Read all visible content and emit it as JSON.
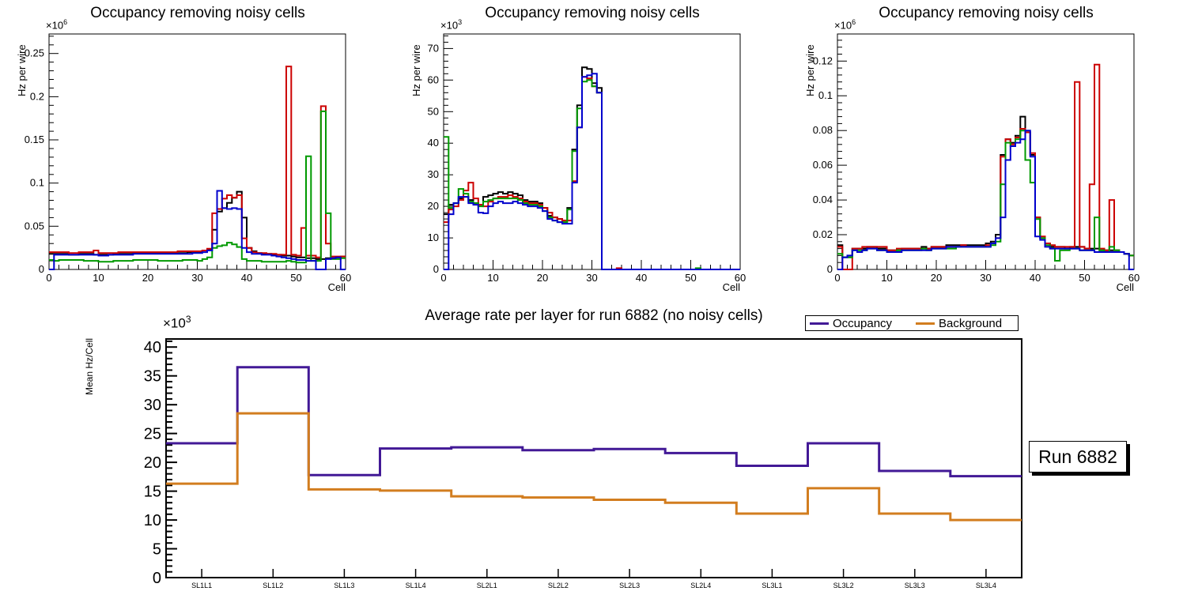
{
  "chart_data": [
    {
      "id": "occupancy-noisy-cells-1",
      "type": "step-histogram",
      "title": "Occupancy removing noisy cells",
      "xlabel": "Cell",
      "ylabel": "Hz per wire",
      "exponent": {
        "base": "×10",
        "power": "6"
      },
      "xlim": [
        0,
        60
      ],
      "ylim": [
        0,
        0.2726
      ],
      "xticks": [
        0,
        10,
        20,
        30,
        40,
        50,
        60
      ],
      "xtick_labels": [
        "0",
        "10",
        "20",
        "30",
        "40",
        "50",
        "60"
      ],
      "x_minor_step": 2,
      "yticks": [
        0,
        0.05,
        0.1,
        0.15,
        0.2,
        0.25
      ],
      "ytick_labels": [
        "0",
        "0.05",
        "0.1",
        "0.15",
        "0.2",
        "0.25"
      ],
      "y_major_step": 0.05,
      "y_minor_step": 0.01,
      "grid": false,
      "series": [
        {
          "name": "black",
          "color": "#000000",
          "values": [
            0.018,
            0.018,
            0.018,
            0.018,
            0.017,
            0.017,
            0.018,
            0.018,
            0.018,
            0.017,
            0.017,
            0.017,
            0.017,
            0.018,
            0.018,
            0.018,
            0.018,
            0.019,
            0.019,
            0.019,
            0.019,
            0.019,
            0.019,
            0.019,
            0.019,
            0.019,
            0.019,
            0.019,
            0.02,
            0.02,
            0.02,
            0.022,
            0.023,
            0.046,
            0.067,
            0.071,
            0.077,
            0.083,
            0.09,
            0.06,
            0.025,
            0.021,
            0.019,
            0.018,
            0.018,
            0.017,
            0.017,
            0.016,
            0.016,
            0.015,
            0.014,
            0.014,
            0.013,
            0.013,
            0.012,
            0.012,
            0.013,
            0.013,
            0.014,
            0.015
          ]
        },
        {
          "name": "red",
          "color": "#cc0000",
          "values": [
            0.02,
            0.02,
            0.02,
            0.02,
            0.019,
            0.019,
            0.02,
            0.02,
            0.02,
            0.022,
            0.019,
            0.019,
            0.019,
            0.019,
            0.02,
            0.02,
            0.02,
            0.02,
            0.02,
            0.02,
            0.02,
            0.02,
            0.02,
            0.02,
            0.02,
            0.02,
            0.021,
            0.021,
            0.021,
            0.021,
            0.021,
            0.022,
            0.024,
            0.065,
            0.07,
            0.082,
            0.086,
            0.083,
            0.086,
            0.036,
            0.025,
            0.02,
            0.019,
            0.019,
            0.018,
            0.018,
            0.017,
            0.017,
            0.235,
            0.017,
            0.016,
            0.048,
            0.016,
            0.016,
            0.014,
            0.189,
            0.03,
            0.015,
            0.015,
            0.015
          ]
        },
        {
          "name": "green",
          "color": "#009900",
          "values": [
            0.011,
            0.01,
            0.011,
            0.011,
            0.011,
            0.011,
            0.011,
            0.01,
            0.01,
            0.01,
            0.009,
            0.009,
            0.009,
            0.01,
            0.01,
            0.01,
            0.01,
            0.011,
            0.011,
            0.011,
            0.011,
            0.011,
            0.01,
            0.01,
            0.01,
            0.01,
            0.01,
            0.011,
            0.011,
            0.011,
            0.01,
            0.012,
            0.014,
            0.025,
            0.027,
            0.028,
            0.031,
            0.029,
            0.026,
            0.012,
            0.01,
            0.01,
            0.01,
            0.009,
            0.009,
            0.009,
            0.009,
            0.009,
            0.01,
            0.009,
            0.008,
            0.008,
            0.131,
            0.01,
            0.01,
            0.183,
            0.065,
            0.012,
            0.012,
            0.013
          ]
        },
        {
          "name": "blue",
          "color": "#0000cc",
          "values": [
            0,
            0.017,
            0.017,
            0.017,
            0.017,
            0.017,
            0.017,
            0.017,
            0.017,
            0.017,
            0.016,
            0.016,
            0.017,
            0.017,
            0.017,
            0.017,
            0.017,
            0.018,
            0.018,
            0.018,
            0.018,
            0.018,
            0.018,
            0.018,
            0.018,
            0.018,
            0.018,
            0.018,
            0.018,
            0.019,
            0.019,
            0.02,
            0.022,
            0.03,
            0.091,
            0.071,
            0.07,
            0.071,
            0.07,
            0.025,
            0.02,
            0.018,
            0.018,
            0.017,
            0.017,
            0.016,
            0.015,
            0.014,
            0.013,
            0.012,
            0.011,
            0.011,
            0.01,
            0.01,
            0,
            0,
            0.012,
            0.013,
            0.014,
            0
          ]
        }
      ]
    },
    {
      "id": "occupancy-noisy-cells-2",
      "type": "step-histogram",
      "title": "Occupancy removing noisy cells",
      "xlabel": "Cell",
      "ylabel": "Hz per wire",
      "exponent": {
        "base": "×10",
        "power": "3"
      },
      "xlim": [
        0,
        60
      ],
      "ylim": [
        0,
        74.6
      ],
      "xticks": [
        0,
        10,
        20,
        30,
        40,
        50,
        60
      ],
      "xtick_labels": [
        "0",
        "10",
        "20",
        "30",
        "40",
        "50",
        "60"
      ],
      "x_minor_step": 2,
      "yticks": [
        0,
        10,
        20,
        30,
        40,
        50,
        60,
        70
      ],
      "ytick_labels": [
        "0",
        "10",
        "20",
        "30",
        "40",
        "50",
        "60",
        "70"
      ],
      "y_major_step": 10,
      "y_minor_step": 2,
      "grid": false,
      "series": [
        {
          "name": "black",
          "color": "#000000",
          "values": [
            17.5,
            20.5,
            21,
            22.5,
            23,
            22,
            21,
            20.5,
            23,
            23.5,
            24,
            24.5,
            24,
            24.5,
            24,
            23.5,
            22,
            21.5,
            21.5,
            21,
            19.5,
            17,
            16.5,
            16,
            15.5,
            19.5,
            38,
            52,
            64,
            63.5,
            59,
            57.5,
            0,
            0,
            0,
            0,
            0,
            0,
            0,
            0,
            0,
            0,
            0,
            0,
            0,
            0,
            0,
            0,
            0,
            0,
            0,
            0,
            0,
            0,
            0,
            0,
            0,
            0,
            0,
            0
          ]
        },
        {
          "name": "red",
          "color": "#cc0000",
          "values": [
            15,
            19,
            20,
            22,
            25,
            27.5,
            22.5,
            20.5,
            20,
            21.5,
            22.5,
            23,
            23,
            23.5,
            23,
            22.5,
            21.5,
            21,
            21,
            20.5,
            19.5,
            18,
            16.5,
            16,
            15.5,
            15.5,
            28,
            45,
            61,
            60.5,
            58,
            56,
            0,
            0,
            0,
            0.4,
            0,
            0,
            0,
            0,
            0,
            0,
            0,
            0,
            0,
            0,
            0,
            0,
            0,
            0,
            0,
            0,
            0,
            0,
            0,
            0,
            0,
            0,
            0,
            0
          ]
        },
        {
          "name": "green",
          "color": "#009900",
          "values": [
            42,
            19.5,
            21,
            25.5,
            24,
            21.5,
            21,
            20,
            21.5,
            22,
            22.5,
            22.5,
            22.5,
            22.5,
            22.5,
            22,
            21,
            20.5,
            20.5,
            20,
            18.5,
            16.5,
            15.5,
            15,
            15,
            19,
            37.5,
            51,
            59.5,
            60,
            58,
            56,
            0,
            0,
            0,
            0,
            0,
            0,
            0,
            0,
            0,
            0,
            0,
            0,
            0,
            0,
            0,
            0,
            0,
            0,
            0,
            0.4,
            0,
            0,
            0,
            0,
            0,
            0,
            0,
            0
          ]
        },
        {
          "name": "blue",
          "color": "#0000cc",
          "values": [
            0,
            17.5,
            21,
            23,
            23,
            21,
            20.5,
            18,
            17.8,
            20,
            21,
            21.5,
            21,
            21,
            21.5,
            21,
            20.5,
            20,
            20,
            19.5,
            18.5,
            16,
            15.5,
            15,
            14.5,
            14.5,
            27.5,
            45,
            61,
            61.5,
            62,
            56,
            0,
            0,
            0,
            0,
            0,
            0,
            0,
            0,
            0,
            0,
            0,
            0,
            0,
            0,
            0,
            0,
            0,
            0,
            0,
            0,
            0,
            0,
            0,
            0,
            0,
            0,
            0,
            0
          ]
        }
      ]
    },
    {
      "id": "occupancy-noisy-cells-3",
      "type": "step-histogram",
      "title": "Occupancy removing noisy cells",
      "xlabel": "Cell",
      "ylabel": "Hz per wire",
      "exponent": {
        "base": "×10",
        "power": "6"
      },
      "xlim": [
        0,
        60
      ],
      "ylim": [
        0,
        0.1356
      ],
      "xticks": [
        0,
        10,
        20,
        30,
        40,
        50,
        60
      ],
      "xtick_labels": [
        "0",
        "10",
        "20",
        "30",
        "40",
        "50",
        "60"
      ],
      "x_minor_step": 2,
      "yticks": [
        0,
        0.02,
        0.04,
        0.06,
        0.08,
        0.1,
        0.12
      ],
      "ytick_labels": [
        "0",
        "0.02",
        "0.04",
        "0.06",
        "0.08",
        "0.1",
        "0.12"
      ],
      "y_major_step": 0.02,
      "y_minor_step": 0.004,
      "grid": false,
      "series": [
        {
          "name": "black",
          "color": "#000000",
          "values": [
            0.014,
            0.007,
            0.007,
            0.012,
            0.012,
            0.012,
            0.013,
            0.013,
            0.012,
            0.012,
            0.011,
            0.011,
            0.011,
            0.012,
            0.012,
            0.012,
            0.012,
            0.013,
            0.012,
            0.013,
            0.013,
            0.013,
            0.014,
            0.014,
            0.014,
            0.014,
            0.014,
            0.014,
            0.014,
            0.014,
            0.015,
            0.016,
            0.02,
            0.066,
            0.075,
            0.073,
            0.077,
            0.088,
            0.079,
            0.066,
            0.03,
            0.018,
            0.015,
            0.013,
            0.013,
            0.013,
            0.012,
            0.013,
            0.013,
            0.013,
            0.012,
            0.012,
            0.012,
            0.011,
            0.011,
            0.011,
            0.011,
            0.01,
            0.009,
            0.008
          ]
        },
        {
          "name": "red",
          "color": "#cc0000",
          "values": [
            0.013,
            0,
            0,
            0.012,
            0.012,
            0.013,
            0.013,
            0.013,
            0.013,
            0.013,
            0.011,
            0.011,
            0.012,
            0.012,
            0.012,
            0.012,
            0.012,
            0.012,
            0.012,
            0.013,
            0.013,
            0.013,
            0.013,
            0.013,
            0.013,
            0.014,
            0.013,
            0.013,
            0.013,
            0.013,
            0.014,
            0.015,
            0.018,
            0.065,
            0.075,
            0.072,
            0.076,
            0.081,
            0.079,
            0.067,
            0.03,
            0.019,
            0.015,
            0.014,
            0.013,
            0.013,
            0.013,
            0.013,
            0.108,
            0.013,
            0.012,
            0.049,
            0.118,
            0.012,
            0.011,
            0.04,
            0.011,
            0.01,
            0.009,
            0.008
          ]
        },
        {
          "name": "green",
          "color": "#009900",
          "values": [
            0.009,
            0.007,
            0.007,
            0.011,
            0.011,
            0.011,
            0.012,
            0.012,
            0.011,
            0.011,
            0.01,
            0.01,
            0.011,
            0.011,
            0.011,
            0.011,
            0.011,
            0.012,
            0.011,
            0.012,
            0.012,
            0.012,
            0.012,
            0.012,
            0.013,
            0.013,
            0.013,
            0.013,
            0.013,
            0.013,
            0.013,
            0.014,
            0.016,
            0.049,
            0.073,
            0.071,
            0.075,
            0.08,
            0.063,
            0.05,
            0.029,
            0.018,
            0.014,
            0.012,
            0.005,
            0.011,
            0.011,
            0.012,
            0.012,
            0.011,
            0.011,
            0.011,
            0.03,
            0.011,
            0.01,
            0.013,
            0.011,
            0.01,
            0.009,
            0.008
          ]
        },
        {
          "name": "blue",
          "color": "#0000cc",
          "values": [
            0,
            0.007,
            0.008,
            0.011,
            0.01,
            0.011,
            0.012,
            0.012,
            0.011,
            0.011,
            0.01,
            0.01,
            0.01,
            0.011,
            0.011,
            0.011,
            0.011,
            0.011,
            0.011,
            0.012,
            0.012,
            0.012,
            0.013,
            0.013,
            0.013,
            0.013,
            0.013,
            0.013,
            0.013,
            0.013,
            0.013,
            0.015,
            0.018,
            0.03,
            0.063,
            0.071,
            0.073,
            0.075,
            0.08,
            0.065,
            0.019,
            0.017,
            0.013,
            0.012,
            0.012,
            0.012,
            0.012,
            0.012,
            0.012,
            0.011,
            0.011,
            0.011,
            0.01,
            0.01,
            0.01,
            0.01,
            0.01,
            0.01,
            0.009,
            0
          ]
        }
      ]
    },
    {
      "id": "average-rate-per-layer",
      "type": "step-line",
      "title": "Average rate per layer for run 6882 (no noisy cells)",
      "xlabel": "",
      "ylabel": "Mean Hz/Cell",
      "exponent": {
        "base": "×10",
        "power": "3"
      },
      "categories": [
        "SL1L1",
        "SL1L2",
        "SL1L3",
        "SL1L4",
        "SL2L1",
        "SL2L2",
        "SL2L3",
        "SL2L4",
        "SL3L1",
        "SL3L2",
        "SL3L3",
        "SL3L4"
      ],
      "ylim": [
        0,
        41.4
      ],
      "yticks": [
        0,
        5,
        10,
        15,
        20,
        25,
        30,
        35,
        40
      ],
      "ytick_labels": [
        "0",
        "5",
        "10",
        "15",
        "20",
        "25",
        "30",
        "35",
        "40"
      ],
      "y_major_step": 5,
      "y_minor_step": 1,
      "grid": false,
      "legend_position": "top-right",
      "annotation": "Run 6882",
      "series": [
        {
          "name": "Occupancy",
          "color": "#421996",
          "values": [
            23.3,
            36.5,
            17.8,
            22.4,
            22.6,
            22.1,
            22.3,
            21.6,
            19.4,
            23.3,
            18.5,
            17.6
          ]
        },
        {
          "name": "Background",
          "color": "#d27d1f",
          "values": [
            16.3,
            28.5,
            15.3,
            15.1,
            14.1,
            13.9,
            13.5,
            13.0,
            11.1,
            15.5,
            11.1,
            10.0
          ]
        }
      ]
    }
  ]
}
